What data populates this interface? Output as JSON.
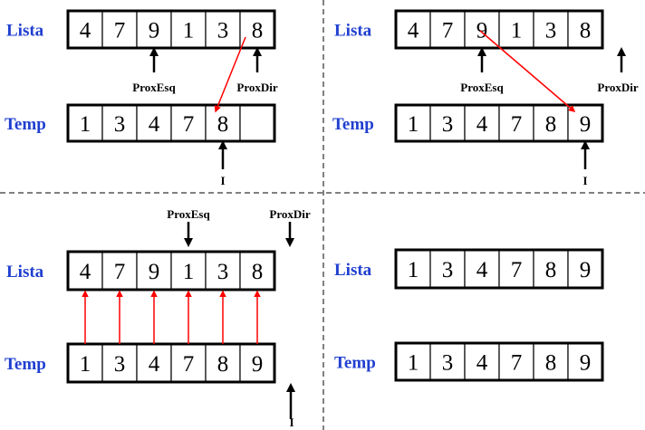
{
  "labels": {
    "lista": "Lista",
    "temp": "Temp"
  },
  "pointers": {
    "prox_esq": "ProxEsq",
    "prox_dir": "ProxDir",
    "i": "I"
  },
  "colors": {
    "label": "#1f3fd0",
    "copy_arrow": "#ff0000",
    "pointer_arrow": "#000000"
  },
  "panels": [
    {
      "lista": [
        "4",
        "7",
        "9",
        "1",
        "3",
        "8"
      ],
      "temp": [
        "1",
        "3",
        "4",
        "7",
        "8",
        ""
      ],
      "prox_esq_index": 2,
      "prox_dir_index": 5,
      "i_index": 4,
      "copy": "Lista[5] -> Temp[4]"
    },
    {
      "lista": [
        "4",
        "7",
        "9",
        "1",
        "3",
        "8"
      ],
      "temp": [
        "1",
        "3",
        "4",
        "7",
        "8",
        "9"
      ],
      "prox_esq_index": 2,
      "prox_dir_index": 6,
      "i_index": 5,
      "copy": "Lista[2] -> Temp[5]"
    },
    {
      "lista": [
        "4",
        "7",
        "9",
        "1",
        "3",
        "8"
      ],
      "temp": [
        "1",
        "3",
        "4",
        "7",
        "8",
        "9"
      ],
      "prox_esq_index": 3,
      "prox_dir_index": 6,
      "i_index": 6,
      "copy": "Temp -> Lista (all)"
    },
    {
      "lista": [
        "1",
        "3",
        "4",
        "7",
        "8",
        "9"
      ],
      "temp": [
        "1",
        "3",
        "4",
        "7",
        "8",
        "9"
      ]
    }
  ]
}
